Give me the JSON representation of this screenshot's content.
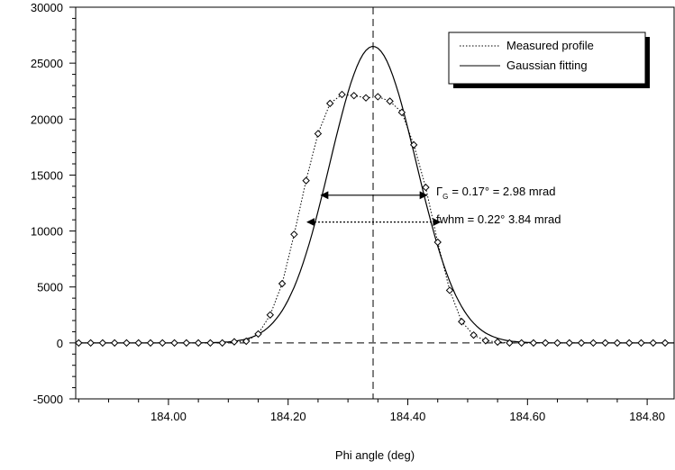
{
  "chart_data": {
    "type": "line",
    "xlabel": "Phi angle (deg)",
    "ylabel": "",
    "xlim": [
      183.845,
      184.845
    ],
    "ylim": [
      -5000,
      30000
    ],
    "x_ticks": [
      184.0,
      184.2,
      184.4,
      184.6,
      184.8
    ],
    "x_tick_labels": [
      "184.00",
      "184.20",
      "184.40",
      "184.60",
      "184.80"
    ],
    "y_ticks": [
      -5000,
      0,
      5000,
      10000,
      15000,
      20000,
      25000,
      30000
    ],
    "y_tick_labels": [
      "-5000",
      "0",
      "5000",
      "10000",
      "15000",
      "20000",
      "25000",
      "30000"
    ],
    "grid": false,
    "legend_position": "top-right",
    "series": [
      {
        "name": "Measured profile",
        "style": "dotted",
        "marker": "diamond",
        "x": [
          183.85,
          183.87,
          183.89,
          183.91,
          183.93,
          183.95,
          183.97,
          183.99,
          184.01,
          184.03,
          184.05,
          184.07,
          184.09,
          184.11,
          184.13,
          184.15,
          184.17,
          184.19,
          184.21,
          184.23,
          184.25,
          184.27,
          184.29,
          184.31,
          184.33,
          184.35,
          184.37,
          184.39,
          184.41,
          184.43,
          184.45,
          184.47,
          184.49,
          184.51,
          184.53,
          184.55,
          184.57,
          184.59,
          184.61,
          184.63,
          184.65,
          184.67,
          184.69,
          184.71,
          184.73,
          184.75,
          184.77,
          184.79,
          184.81,
          184.83
        ],
        "y": [
          0,
          0,
          0,
          0,
          0,
          0,
          0,
          0,
          0,
          0,
          0,
          0,
          0,
          100,
          150,
          800,
          2500,
          5300,
          9700,
          14500,
          18700,
          21400,
          22200,
          22100,
          21900,
          22000,
          21600,
          20600,
          17700,
          13900,
          9000,
          4700,
          1900,
          700,
          200,
          80,
          0,
          0,
          0,
          0,
          0,
          0,
          0,
          0,
          0,
          0,
          0,
          0,
          0,
          0
        ]
      },
      {
        "name": "Gaussian fitting",
        "style": "solid",
        "center": 184.342,
        "amplitude": 26500,
        "fwhm_deg": 0.17,
        "x_range": [
          183.845,
          184.845
        ],
        "step": 0.005
      }
    ],
    "reference_lines": {
      "vertical_x": 184.342,
      "horizontal_y": 0,
      "style": "dashed"
    },
    "annotations": {
      "gamma_text_main": "Γ",
      "gamma_text_sub": "G",
      "gamma_text_rest": "= 0.17° = 2.98 mrad",
      "fwhm_text": "fwhm = 0.22°   3.84 mrad",
      "gamma_arrow": {
        "x": [
          184.255,
          184.432
        ],
        "y": 13200
      },
      "fwhm_arrow": {
        "x": [
          184.232,
          184.454
        ],
        "y": 10800
      }
    }
  }
}
